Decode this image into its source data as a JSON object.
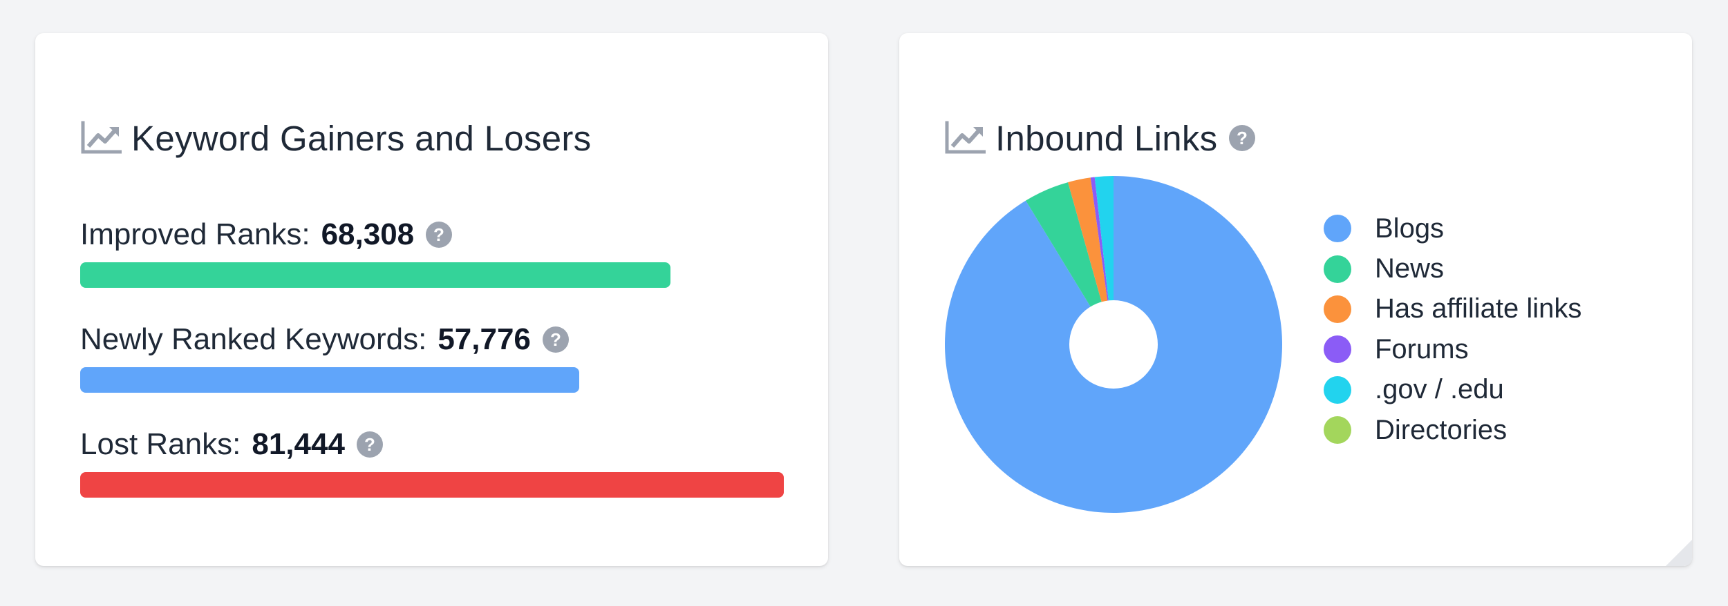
{
  "keyword_card": {
    "title": "Keyword Gainers and Losers",
    "icon": "trend-chart-icon",
    "metrics": [
      {
        "label": "Improved Ranks:",
        "value": "68,308",
        "fraction": 0.8387,
        "color": "#34d399"
      },
      {
        "label": "Newly Ranked Keywords:",
        "value": "57,776",
        "fraction": 0.7094,
        "color": "#60a5fa"
      },
      {
        "label": "Lost Ranks:",
        "value": "81,444",
        "fraction": 1.0,
        "color": "#ef4444"
      }
    ]
  },
  "links_card": {
    "title": "Inbound Links",
    "icon": "trend-chart-icon",
    "legend": [
      {
        "label": "Blogs",
        "color": "#60a5fa"
      },
      {
        "label": "News",
        "color": "#34d399"
      },
      {
        "label": "Has affiliate links",
        "color": "#fb923c"
      },
      {
        "label": "Forums",
        "color": "#8b5cf6"
      },
      {
        "label": ".gov / .edu",
        "color": "#22d3ee"
      },
      {
        "label": "Directories",
        "color": "#a3d65c"
      }
    ]
  },
  "chart_data": {
    "type": "pie",
    "title": "Inbound Links",
    "categories": [
      "Blogs",
      "News",
      "Has affiliate links",
      "Forums",
      ".gov / .edu",
      "Directories"
    ],
    "values": [
      92.2,
      4.4,
      2.2,
      0.4,
      1.8,
      0.0
    ],
    "colors": [
      "#60a5fa",
      "#34d399",
      "#fb923c",
      "#8b5cf6",
      "#22d3ee",
      "#a3d65c"
    ],
    "legend_position": "right",
    "donut": true
  }
}
